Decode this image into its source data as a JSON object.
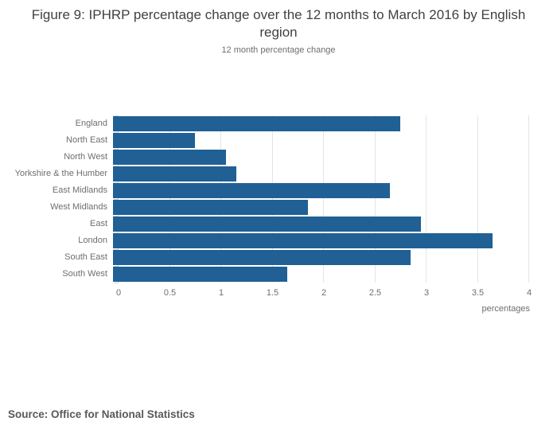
{
  "chart_data": {
    "type": "bar",
    "orientation": "horizontal",
    "title": "Figure 9: IPHRP percentage change over the 12 months to March 2016 by English region",
    "subtitle": "12 month percentage change",
    "xlabel": "percentages",
    "source": "Source: Office for National Statistics",
    "categories": [
      "England",
      "North East",
      "North West",
      "Yorkshire & the Humber",
      "East Midlands",
      "West Midlands",
      "East",
      "London",
      "South East",
      "South West"
    ],
    "values": [
      2.8,
      0.8,
      1.1,
      1.2,
      2.7,
      1.9,
      3.0,
      3.7,
      2.9,
      1.7
    ],
    "xlim": [
      0,
      4
    ],
    "xticks": [
      0,
      0.5,
      1,
      1.5,
      2,
      2.5,
      3,
      3.5,
      4
    ],
    "grid": true,
    "legend": "none",
    "colors": {
      "bar": "#206095",
      "gridline": "#e2e4e6",
      "axis_line": "#c9d6e1",
      "text": "#6d6e71",
      "title": "#414042",
      "source": "#58595b"
    }
  }
}
